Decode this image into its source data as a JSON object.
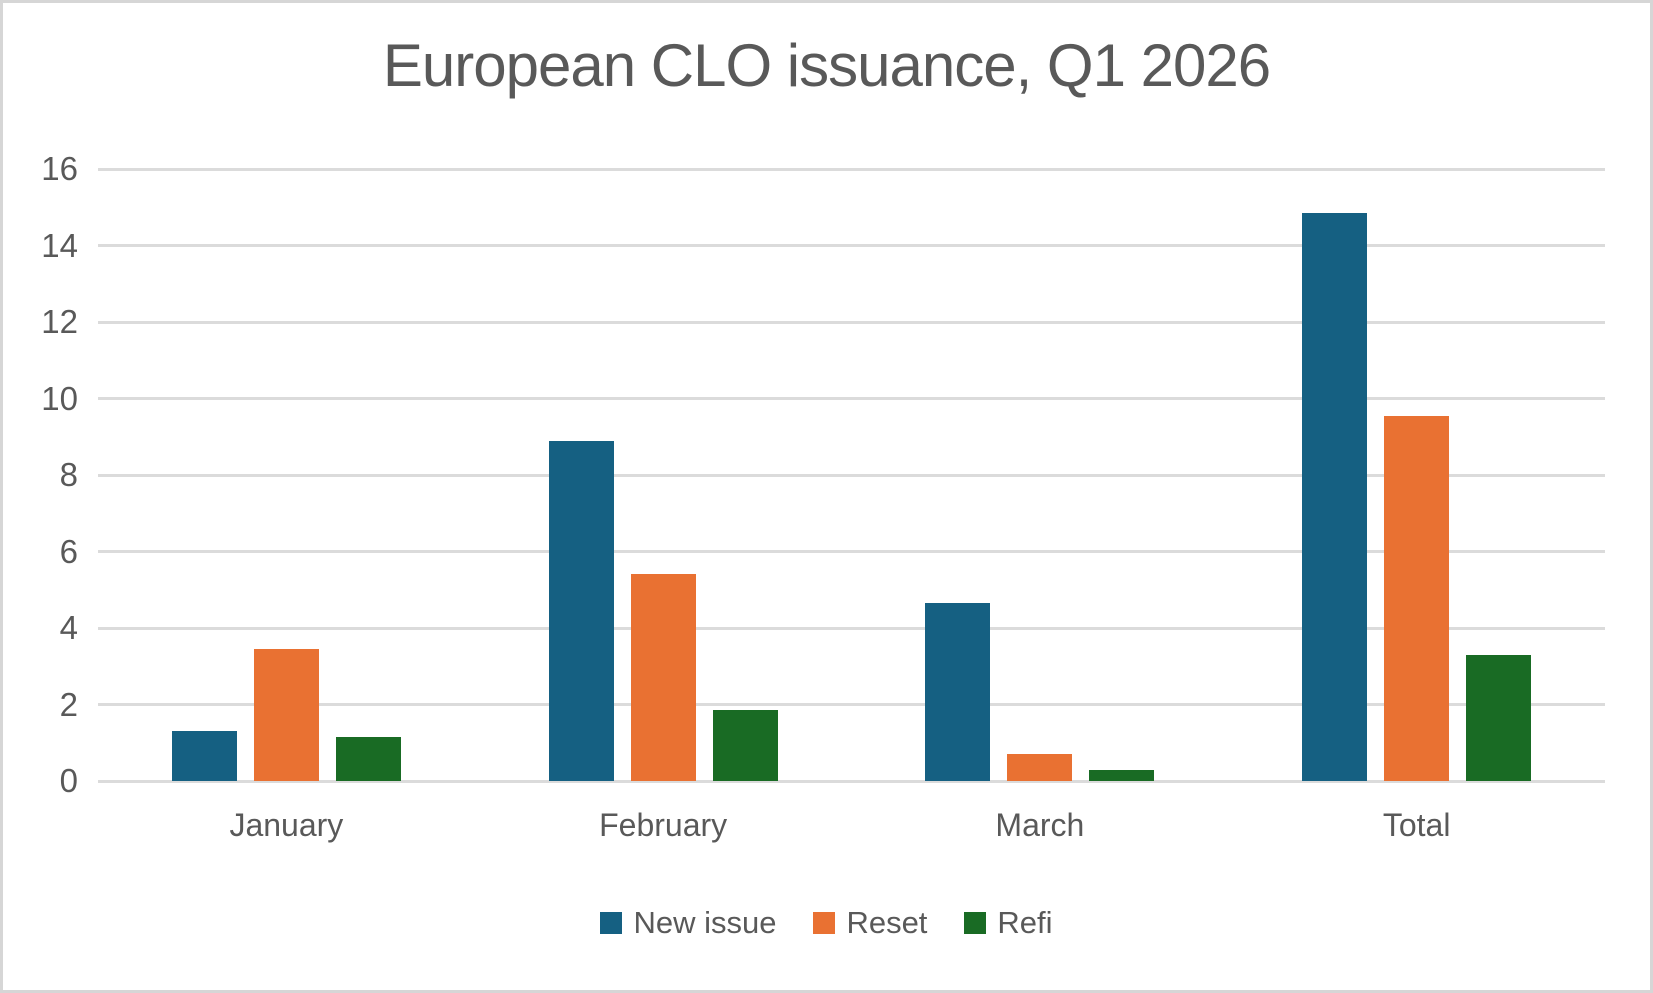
{
  "chart_data": {
    "type": "bar",
    "title": "European CLO issuance, Q1 2026",
    "categories": [
      "January",
      "February",
      "March",
      "Total"
    ],
    "series": [
      {
        "name": "New issue",
        "color": "#156082",
        "values": [
          1.3,
          8.9,
          4.65,
          14.85
        ]
      },
      {
        "name": "Reset",
        "color": "#E97132",
        "values": [
          3.45,
          5.4,
          0.7,
          9.55
        ]
      },
      {
        "name": "Refi",
        "color": "#196B24",
        "values": [
          1.15,
          1.85,
          0.3,
          3.3
        ]
      }
    ],
    "xlabel": "",
    "ylabel": "",
    "ylim": [
      0,
      16
    ],
    "yticks": [
      0,
      2,
      4,
      6,
      8,
      10,
      12,
      14,
      16
    ],
    "grid": true,
    "legend_position": "bottom"
  },
  "styles": {
    "text_color": "#595959",
    "gridline_color": "#DBDBDB",
    "background": "#FFFFFF",
    "frame_border_color": "#D6D6D6"
  }
}
